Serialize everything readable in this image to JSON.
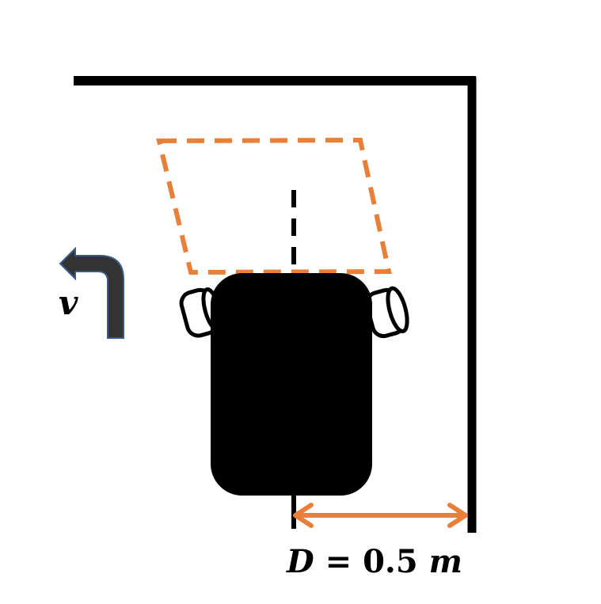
{
  "colors": {
    "wall": "#000000",
    "robot": "#000000",
    "target_zone": "#E8803A",
    "distance_arrow": "#E8803A",
    "turn_arrow": "#333333",
    "turn_arrow_outline": "#3A5A8A"
  },
  "icons": {
    "turn_arrow": "turn-left-arrow-icon",
    "robot": "robot-top-view"
  },
  "labels": {
    "velocity": "v",
    "distance_symbol": "D",
    "distance_equals": " = ",
    "distance_value": "0.5",
    "distance_unit": "m"
  }
}
